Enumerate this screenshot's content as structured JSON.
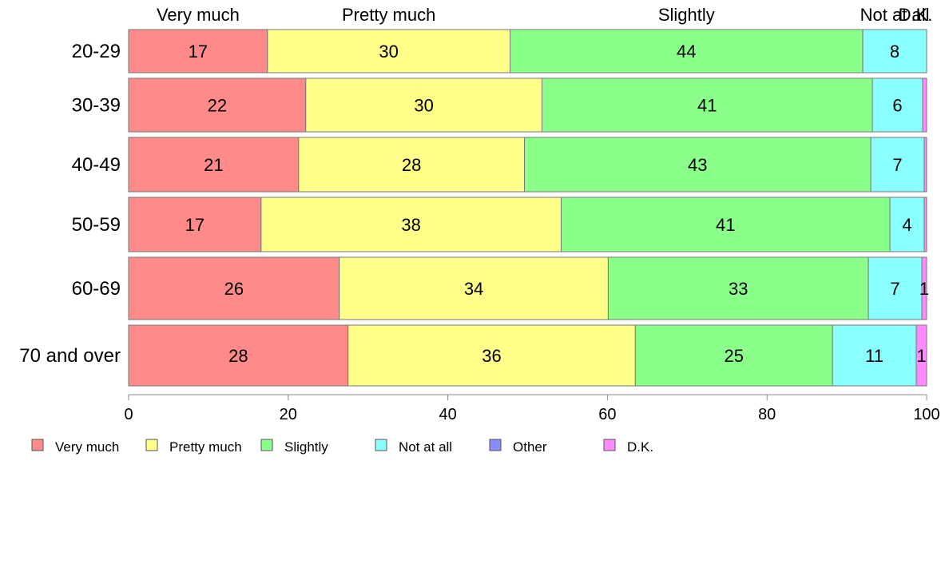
{
  "chart_data": {
    "type": "bar",
    "orientation": "horizontal",
    "stacked": true,
    "categories": [
      "20-29",
      "30-39",
      "40-49",
      "50-59",
      "60-69",
      "70 and over"
    ],
    "series": [
      {
        "name": "Very much",
        "color": "#ff8a8a",
        "values": [
          17.4,
          22.2,
          21.3,
          16.6,
          26.4,
          27.5
        ],
        "labels": [
          "17",
          "22",
          "21",
          "17",
          "26",
          "28"
        ]
      },
      {
        "name": "Pretty much",
        "color": "#ffff8a",
        "values": [
          30.4,
          29.6,
          28.3,
          37.6,
          33.7,
          36.0
        ],
        "labels": [
          "30",
          "30",
          "28",
          "38",
          "34",
          "36"
        ]
      },
      {
        "name": "Slightly",
        "color": "#8aff8a",
        "values": [
          44.2,
          41.4,
          43.4,
          41.2,
          32.6,
          24.7
        ],
        "labels": [
          "44",
          "41",
          "43",
          "41",
          "33",
          "25"
        ]
      },
      {
        "name": "Not at all",
        "color": "#8affff",
        "values": [
          8.0,
          6.3,
          6.7,
          4.3,
          6.7,
          10.5
        ],
        "labels": [
          "8",
          "6",
          "7",
          "4",
          "7",
          "11"
        ]
      },
      {
        "name": "Other",
        "color": "#8a8aff",
        "values": [
          0,
          0,
          0,
          0,
          0,
          0
        ],
        "labels": [
          "",
          "",
          "",
          "",
          "",
          ""
        ]
      },
      {
        "name": "D.K.",
        "color": "#ff8aff",
        "values": [
          0,
          0.5,
          0.3,
          0.3,
          0.6,
          1.3
        ],
        "labels": [
          "",
          "",
          "",
          "",
          "1",
          "1"
        ]
      }
    ],
    "top_labels": [
      "Very much",
      "Pretty much",
      "Slightly",
      "Not at all",
      "D.K."
    ],
    "xlim": [
      0,
      100
    ],
    "xticks": [
      "0",
      "20",
      "40",
      "60",
      "80",
      "100"
    ],
    "grid": false,
    "legend_position": "bottom"
  }
}
